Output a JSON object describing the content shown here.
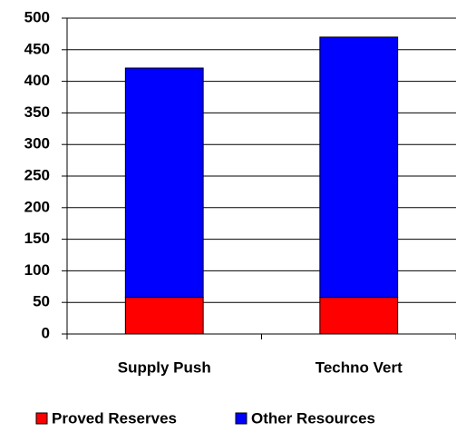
{
  "chart_data": {
    "type": "stacked_bar",
    "categories": [
      "Supply Push",
      "Techno Vert"
    ],
    "series": [
      {
        "name": "Proved Reserves",
        "color": "#ff0000",
        "values": [
          58,
          58
        ]
      },
      {
        "name": "Other Resources",
        "color": "#0000ff",
        "values": [
          363,
          412
        ]
      }
    ],
    "ylim": [
      0,
      500
    ],
    "yticks": [
      0,
      50,
      100,
      150,
      200,
      250,
      300,
      350,
      400,
      450,
      500
    ],
    "grid": true,
    "legend": "bottom"
  }
}
